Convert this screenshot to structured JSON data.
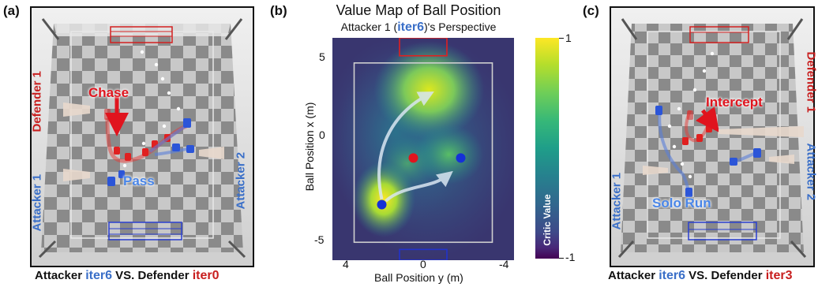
{
  "panels": {
    "a": {
      "label": "(a)",
      "caption_prefix": "Attacker ",
      "caption_attacker_iter": "iter6",
      "caption_mid": " VS.  Defender ",
      "caption_defender_iter": "iter0",
      "side_left_top": "Defender 1",
      "side_left_bottom": "Attacker 1",
      "side_right": "Attacker 2",
      "annotation_chase": "Chase",
      "annotation_pass": "Pass"
    },
    "b": {
      "label": "(b)",
      "title": "Value Map of Ball Position",
      "subtitle_prefix": "Attacker 1 (",
      "subtitle_iter": "iter6",
      "subtitle_suffix": ")'s Perspective",
      "colorbar_label": "Critic Value",
      "colorbar_top": "1",
      "colorbar_bottom": "-1"
    },
    "c": {
      "label": "(c)",
      "caption_prefix": "Attacker ",
      "caption_attacker_iter": "iter6",
      "caption_mid": " VS.  Defender ",
      "caption_defender_iter": "iter3",
      "side_left": "Attacker 1",
      "side_right_top": "Defender 1",
      "side_right_bottom": "Attacker 2",
      "annotation_intercept": "Intercept",
      "annotation_solo": "Solo Run"
    }
  },
  "chart_data": {
    "type": "heatmap",
    "title": "Value Map of Ball Position",
    "xlabel": "Ball Position y (m)",
    "ylabel": "Ball Position x (m)",
    "colorbar_label": "Critic Value",
    "xlim": [
      4.6,
      -4.6
    ],
    "ylim": [
      -6,
      6.4
    ],
    "x_ticks": [
      4,
      0,
      -4
    ],
    "x_tick_labels": [
      "4",
      "0",
      "-4"
    ],
    "y_ticks": [
      5,
      0,
      -5
    ],
    "y_tick_labels": [
      "5",
      "0",
      "-5"
    ],
    "clim": [
      -1,
      1
    ],
    "colorbar_ticks": [
      "1",
      "-1"
    ],
    "points": [
      {
        "color": "red",
        "x": 0.5,
        "y": -0.3
      },
      {
        "color": "blue",
        "x": -1.9,
        "y": -0.3
      },
      {
        "color": "blue",
        "x": 2.1,
        "y": -2.9
      }
    ],
    "hotspots": [
      {
        "x": -0.3,
        "y": 3.5,
        "value": 0.8
      },
      {
        "x": 2.0,
        "y": -2.6,
        "value": 1.0
      },
      {
        "x": -1.3,
        "y": -0.1,
        "value": 0.35
      },
      {
        "x": 0.8,
        "y": -0.6,
        "value": 0.2
      }
    ]
  }
}
